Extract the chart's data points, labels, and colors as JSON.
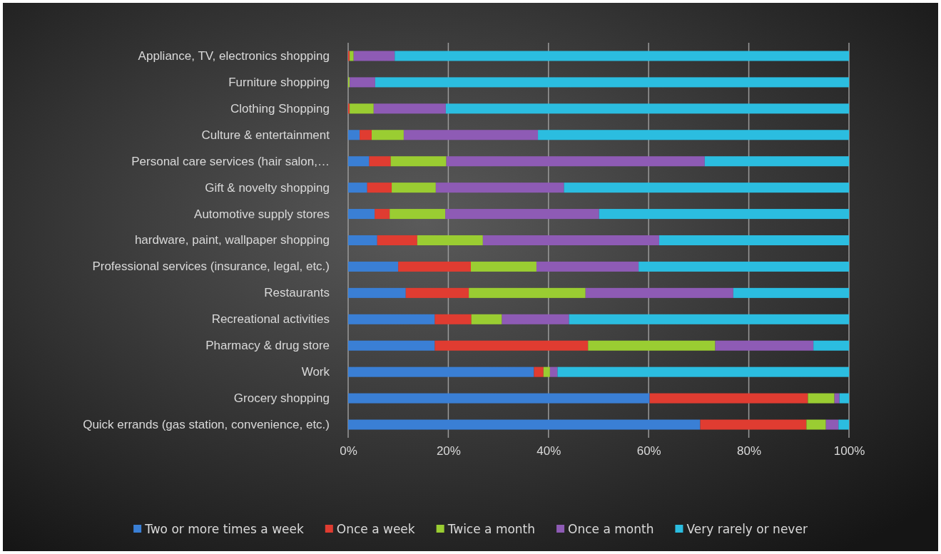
{
  "chart_data": {
    "type": "bar",
    "orientation": "horizontal",
    "stacked": true,
    "grid": "x",
    "legend": "bottom",
    "categories": [
      "Appliance, TV, electronics shopping",
      "Furniture shopping",
      "Clothing Shopping",
      "Culture & entertainment",
      "Personal care services (hair salon,…",
      "Gift & novelty shopping",
      "Automotive supply stores",
      "hardware, paint, wallpaper shopping",
      "Professional services (insurance, legal, etc.)",
      "Restaurants",
      "Recreational activities",
      "Pharmacy & drug store",
      "Work",
      "Grocery shopping",
      "Quick errands (gas station, convenience, etc.)"
    ],
    "xlim": [
      0,
      100
    ],
    "xticks": [
      {
        "value": 0,
        "label": "0%"
      },
      {
        "value": 20,
        "label": "20%"
      },
      {
        "value": 40,
        "label": "40%"
      },
      {
        "value": 60,
        "label": "60%"
      },
      {
        "value": 80,
        "label": "80%"
      },
      {
        "value": 100,
        "label": "100%"
      }
    ],
    "series": [
      {
        "name": "Two or more times a week",
        "color": "#3a7fd5",
        "values": [
          0,
          0,
          0,
          2.3,
          4.2,
          3.8,
          5.3,
          5.8,
          10.0,
          11.5,
          17.3,
          17.3,
          37.1,
          60.2,
          70.3
        ]
      },
      {
        "name": "Once a week",
        "color": "#e03c31",
        "values": [
          0.3,
          0,
          0.3,
          2.4,
          4.3,
          4.9,
          3.0,
          8.0,
          14.5,
          12.6,
          7.3,
          30.6,
          1.9,
          31.6,
          21.2
        ]
      },
      {
        "name": "Twice a month",
        "color": "#9acd32",
        "values": [
          0.8,
          0.3,
          4.8,
          6.4,
          11.1,
          8.8,
          11.1,
          13.1,
          13.1,
          23.3,
          6.1,
          25.4,
          1.3,
          5.3,
          3.9
        ]
      },
      {
        "name": "Once a month",
        "color": "#8e5bb5",
        "values": [
          8.2,
          5.1,
          14.4,
          26.8,
          51.6,
          25.6,
          30.7,
          35.2,
          20.4,
          29.5,
          13.4,
          19.6,
          1.5,
          1.0,
          2.5
        ]
      },
      {
        "name": "Very rarely or never",
        "color": "#2bbde0",
        "values": [
          90.7,
          94.6,
          80.5,
          62.1,
          28.8,
          56.9,
          49.9,
          37.9,
          42.0,
          23.1,
          55.9,
          7.1,
          58.2,
          1.9,
          2.1
        ]
      }
    ]
  }
}
